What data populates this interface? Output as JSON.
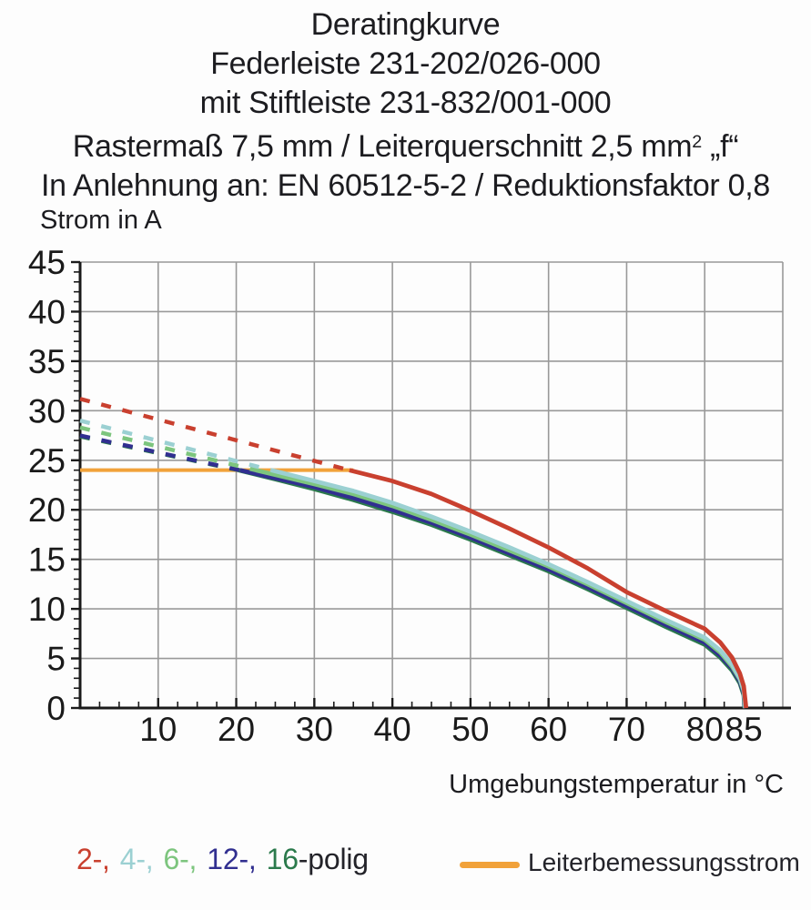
{
  "title": {
    "line1": "Deratingkurve",
    "line2": "Federleiste 231-202/026-000",
    "line3": "mit Stiftleiste 231-832/001-000",
    "line4_pre": "Rastermaß 7,5 mm / Leiterquerschnitt 2,5 mm",
    "line4_sup": "2",
    "line4_post": " „f“",
    "line5": "In Anlehnung an: EN 60512-5-2 / Reduktionsfaktor 0,8"
  },
  "chart_data": {
    "type": "line",
    "title": "Deratingkurve",
    "xlabel": "Umgebungstemperatur in °C",
    "ylabel": "Strom in A",
    "xlim": [
      0,
      90
    ],
    "ylim": [
      0,
      45
    ],
    "xticks": [
      10,
      20,
      30,
      40,
      50,
      60,
      70,
      80,
      85
    ],
    "yticks": [
      0,
      5,
      10,
      15,
      20,
      25,
      30,
      35,
      40,
      45
    ],
    "x_minor_step": 2.5,
    "y_minor_step": 1,
    "grid": {
      "color": "#999999",
      "x_step": 10,
      "y_step": 5
    },
    "axis_color": "#1a1a1a",
    "rated_line": {
      "label": "Leiterbemessungsstrom",
      "color": "#f1a23a",
      "y": 24,
      "x_start": 0,
      "x_end": 35
    },
    "series": [
      {
        "name": "16-polig",
        "color": "#2b7a4c",
        "dashed": [
          [
            0,
            27.4
          ],
          [
            20.3,
            24
          ]
        ],
        "solid": [
          [
            20.3,
            24
          ],
          [
            25,
            23.1
          ],
          [
            30,
            22.1
          ],
          [
            35,
            21.0
          ],
          [
            40,
            19.8
          ],
          [
            45,
            18.5
          ],
          [
            50,
            17.0
          ],
          [
            55,
            15.4
          ],
          [
            60,
            13.8
          ],
          [
            65,
            12.0
          ],
          [
            70,
            10.1
          ],
          [
            75,
            8.2
          ],
          [
            80,
            6.4
          ],
          [
            82,
            5.1
          ],
          [
            83.5,
            3.8
          ],
          [
            84.5,
            2.5
          ],
          [
            85,
            1.3
          ],
          [
            85.1,
            0
          ]
        ]
      },
      {
        "name": "12-polig",
        "color": "#312f90",
        "dashed": [
          [
            0,
            27.5
          ],
          [
            20.5,
            24
          ]
        ],
        "solid": [
          [
            20.5,
            24
          ],
          [
            25,
            23.2
          ],
          [
            30,
            22.3
          ],
          [
            35,
            21.2
          ],
          [
            40,
            20.0
          ],
          [
            45,
            18.7
          ],
          [
            50,
            17.2
          ],
          [
            55,
            15.6
          ],
          [
            60,
            14.0
          ],
          [
            65,
            12.2
          ],
          [
            70,
            10.3
          ],
          [
            75,
            8.4
          ],
          [
            80,
            6.6
          ],
          [
            82,
            5.3
          ],
          [
            83.5,
            4.0
          ],
          [
            84.5,
            2.7
          ],
          [
            85,
            1.5
          ],
          [
            85.15,
            0
          ]
        ]
      },
      {
        "name": "6-polig",
        "color": "#7dc57e",
        "dashed": [
          [
            0,
            28.3
          ],
          [
            22.5,
            24
          ]
        ],
        "solid": [
          [
            22.5,
            24
          ],
          [
            30,
            22.6
          ],
          [
            35,
            21.6
          ],
          [
            40,
            20.4
          ],
          [
            45,
            19.0
          ],
          [
            50,
            17.5
          ],
          [
            55,
            15.9
          ],
          [
            60,
            14.3
          ],
          [
            65,
            12.5
          ],
          [
            70,
            10.6
          ],
          [
            75,
            8.7
          ],
          [
            80,
            6.9
          ],
          [
            82,
            5.6
          ],
          [
            83.5,
            4.2
          ],
          [
            84.5,
            2.9
          ],
          [
            85,
            1.7
          ],
          [
            85.2,
            0
          ]
        ]
      },
      {
        "name": "4-polig",
        "color": "#9bd0d2",
        "dashed": [
          [
            0,
            29.0
          ],
          [
            24.5,
            24
          ]
        ],
        "solid": [
          [
            24.5,
            24
          ],
          [
            30,
            22.9
          ],
          [
            35,
            21.9
          ],
          [
            40,
            20.7
          ],
          [
            45,
            19.3
          ],
          [
            50,
            17.8
          ],
          [
            55,
            16.2
          ],
          [
            60,
            14.5
          ],
          [
            65,
            12.7
          ],
          [
            70,
            10.8
          ],
          [
            75,
            8.9
          ],
          [
            80,
            7.1
          ],
          [
            82,
            5.8
          ],
          [
            83.5,
            4.4
          ],
          [
            84.5,
            3.0
          ],
          [
            85,
            1.8
          ],
          [
            85.2,
            0
          ]
        ]
      },
      {
        "name": "2-polig",
        "color": "#c9402f",
        "dashed": [
          [
            0,
            31.2
          ],
          [
            34.5,
            24
          ]
        ],
        "solid": [
          [
            34.5,
            24
          ],
          [
            40,
            22.9
          ],
          [
            45,
            21.6
          ],
          [
            50,
            19.9
          ],
          [
            55,
            18.1
          ],
          [
            60,
            16.2
          ],
          [
            65,
            14.1
          ],
          [
            70,
            11.7
          ],
          [
            75,
            9.8
          ],
          [
            80,
            8.0
          ],
          [
            82,
            6.6
          ],
          [
            83.5,
            5.1
          ],
          [
            84.5,
            3.5
          ],
          [
            85,
            2.2
          ],
          [
            85.3,
            0
          ]
        ]
      }
    ]
  },
  "legend": {
    "poles": [
      {
        "text": "2-,",
        "color": "#c9402f"
      },
      {
        "text": "4-,",
        "color": "#9bd0d2"
      },
      {
        "text": "6-,",
        "color": "#7dc57e"
      },
      {
        "text": "12-,",
        "color": "#312f90"
      },
      {
        "text": "16",
        "color": "#2b7a4c"
      }
    ],
    "suffix": "-polig",
    "rated": {
      "label": "Leiterbemessungsstrom",
      "color": "#f1a23a"
    }
  }
}
